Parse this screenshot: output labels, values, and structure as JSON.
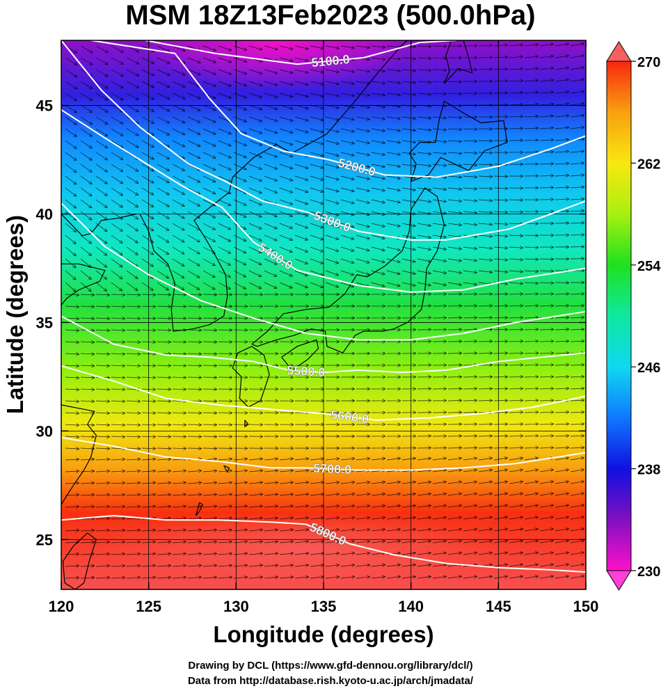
{
  "title": "MSM 18Z13Feb2023 (500.0hPa)",
  "x_axis": {
    "label": "Longitude (degrees)",
    "range": [
      120,
      150
    ],
    "ticks": [
      "120",
      "125",
      "130",
      "135",
      "140",
      "145",
      "150"
    ],
    "tick_values": [
      120,
      125,
      130,
      135,
      140,
      145,
      150
    ]
  },
  "y_axis": {
    "label": "Latitude  (degrees)",
    "range": [
      22.7,
      48
    ],
    "ticks": [
      "25",
      "30",
      "35",
      "40",
      "45"
    ],
    "tick_values": [
      25,
      30,
      35,
      40,
      45
    ]
  },
  "colorbar": {
    "min": 230,
    "max": 270,
    "ticks": [
      "270",
      "262",
      "254",
      "246",
      "238",
      "230"
    ],
    "tick_values": [
      270,
      262,
      254,
      246,
      238,
      230
    ],
    "color_stops": [
      "#ff10c8",
      "#8010c0",
      "#1010e0",
      "#1078ff",
      "#10d8f0",
      "#10e8a0",
      "#20e020",
      "#a8f010",
      "#f8e810",
      "#f8a010",
      "#f82810"
    ]
  },
  "contours": [
    {
      "label": "5100.0",
      "points": [
        [
          124.8,
          48
        ],
        [
          128.8,
          47.4
        ],
        [
          133.5,
          46.9
        ],
        [
          137.3,
          47.2
        ],
        [
          140.5,
          47.9
        ],
        [
          142.6,
          48
        ]
      ]
    },
    {
      "label": "5200.0",
      "points": [
        [
          121.7,
          48
        ],
        [
          126.5,
          47.4
        ],
        [
          128.5,
          45.3
        ],
        [
          130.3,
          43.7
        ],
        [
          132.7,
          42.9
        ],
        [
          135.3,
          42.5
        ],
        [
          138.5,
          41.8
        ],
        [
          141.5,
          41.7
        ],
        [
          145,
          42.2
        ],
        [
          148,
          43
        ],
        [
          150,
          43.6
        ]
      ]
    },
    {
      "label": "5300.0",
      "points": [
        [
          120,
          48
        ],
        [
          122.3,
          45.7
        ],
        [
          124.5,
          44
        ],
        [
          127.3,
          42.3
        ],
        [
          129.4,
          41.5
        ],
        [
          131.5,
          40.6
        ],
        [
          134,
          40.1
        ],
        [
          137,
          39.2
        ],
        [
          140,
          38.8
        ],
        [
          142,
          38.8
        ],
        [
          145.6,
          39.3
        ],
        [
          148,
          40
        ],
        [
          150,
          40.6
        ]
      ]
    },
    {
      "label": "5400.0",
      "points": [
        [
          120,
          44.8
        ],
        [
          122.5,
          43.5
        ],
        [
          124.7,
          42.4
        ],
        [
          126.9,
          41.3
        ],
        [
          129.2,
          40.3
        ],
        [
          131,
          38.7
        ],
        [
          133.5,
          37.4
        ],
        [
          137,
          36.7
        ],
        [
          140,
          36.4
        ],
        [
          143,
          36.5
        ],
        [
          146,
          37
        ],
        [
          150,
          37.5
        ]
      ]
    },
    {
      "label": "",
      "points": [
        [
          120,
          40.5
        ],
        [
          122.5,
          38.5
        ],
        [
          125,
          37.2
        ],
        [
          128,
          36
        ],
        [
          131,
          35.2
        ],
        [
          134,
          34.5
        ],
        [
          137,
          34.2
        ],
        [
          140,
          34.2
        ],
        [
          143,
          34.5
        ],
        [
          146,
          35
        ],
        [
          150,
          35.5
        ]
      ]
    },
    {
      "label": "5500.0",
      "points": [
        [
          120,
          35.3
        ],
        [
          123,
          34
        ],
        [
          126,
          33.5
        ],
        [
          128.5,
          33.4
        ],
        [
          131,
          33.2
        ],
        [
          133,
          32.8
        ],
        [
          135,
          32.7
        ],
        [
          137,
          32.8
        ],
        [
          139.5,
          32.7
        ],
        [
          142,
          32.8
        ],
        [
          145,
          33.2
        ],
        [
          150,
          33.6
        ]
      ]
    },
    {
      "label": "5600.0",
      "points": [
        [
          120,
          33
        ],
        [
          123,
          32.3
        ],
        [
          126,
          31.5
        ],
        [
          129,
          31.2
        ],
        [
          132,
          31
        ],
        [
          135,
          30.8
        ],
        [
          138,
          30.5
        ],
        [
          141,
          30.6
        ],
        [
          144,
          30.8
        ],
        [
          147,
          31.1
        ],
        [
          150,
          31.6
        ]
      ]
    },
    {
      "label": "5700.0",
      "points": [
        [
          120,
          29.7
        ],
        [
          123,
          29.3
        ],
        [
          126,
          28.8
        ],
        [
          129,
          28.6
        ],
        [
          132,
          28.3
        ],
        [
          134,
          28.3
        ],
        [
          137,
          28.2
        ],
        [
          140,
          28.2
        ],
        [
          143,
          28.3
        ],
        [
          146,
          28.5
        ],
        [
          150,
          29
        ]
      ]
    },
    {
      "label": "5800.0",
      "points": [
        [
          120,
          25.9
        ],
        [
          123,
          26.1
        ],
        [
          126,
          25.9
        ],
        [
          129,
          25.9
        ],
        [
          132,
          25.8
        ],
        [
          134,
          25.7
        ],
        [
          136.5,
          24.8
        ],
        [
          139,
          24.3
        ],
        [
          142,
          23.9
        ],
        [
          145,
          23.7
        ],
        [
          148,
          23.6
        ],
        [
          150,
          23.5
        ]
      ]
    }
  ],
  "credits": [
    "Drawing by DCL (https://www.gfd-dennou.org/library/dcl/)",
    "Data from http://database.rish.kyoto-u.ac.jp/arch/jmadata/"
  ]
}
